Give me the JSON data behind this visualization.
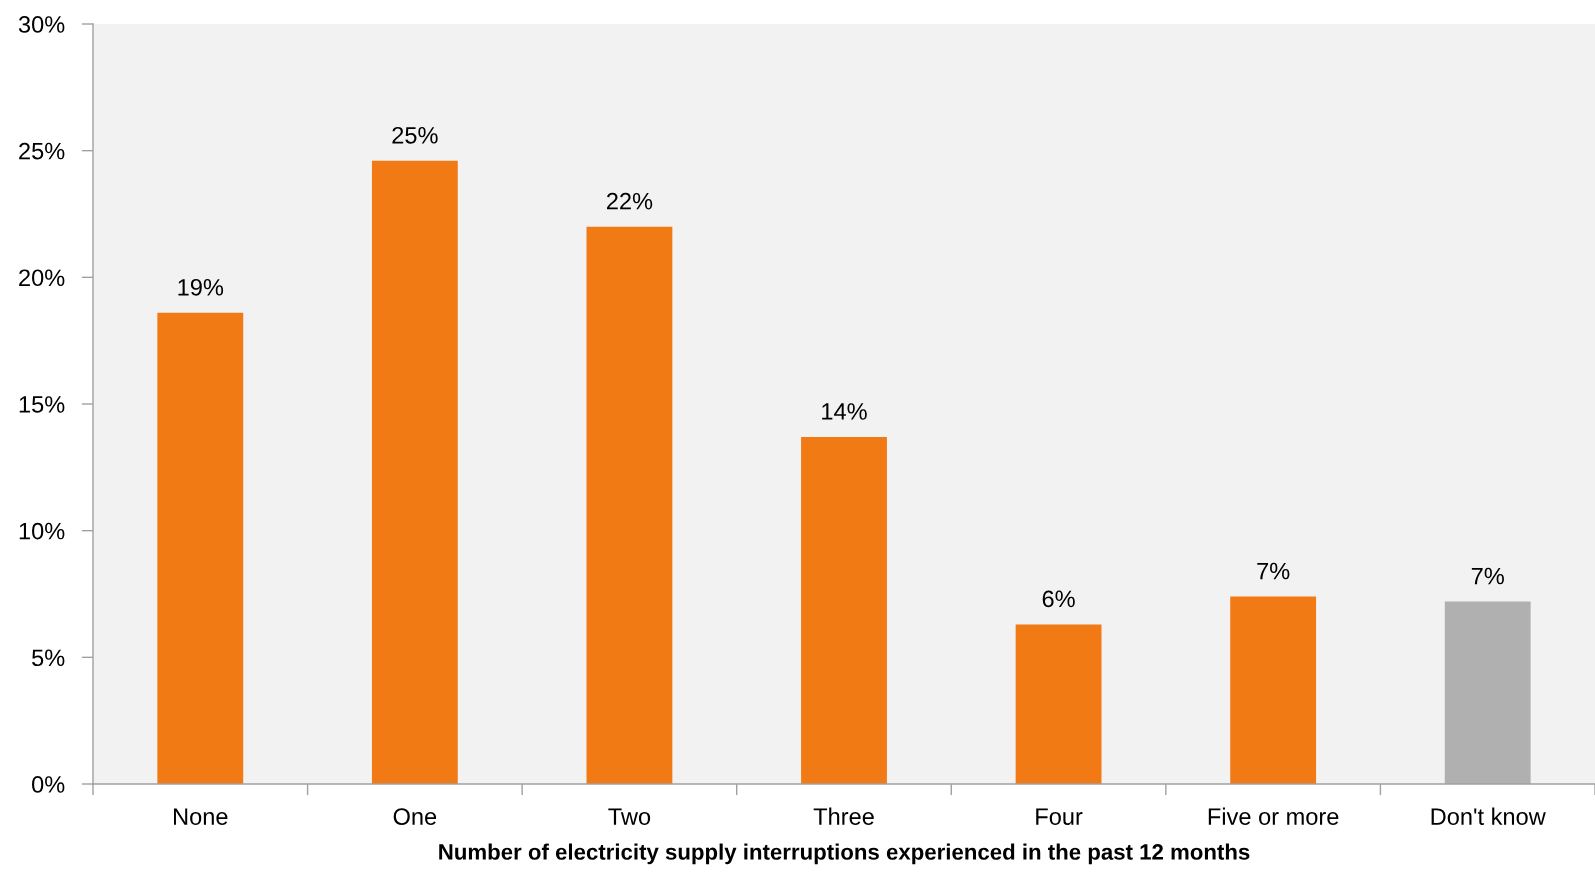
{
  "chart_data": {
    "type": "bar",
    "xlabel": "Number of electricity supply interruptions experienced in the past 12 months",
    "categories": [
      "None",
      "One",
      "Two",
      "Three",
      "Four",
      "Five or more",
      "Don't know"
    ],
    "values": [
      18.6,
      24.6,
      22.0,
      13.7,
      6.3,
      7.4,
      7.2
    ],
    "colors": [
      "#f27a14",
      "#f27a14",
      "#f27a14",
      "#f27a14",
      "#f27a14",
      "#f27a14",
      "#b0b0b0"
    ],
    "value_labels": [
      "19%",
      "25%",
      "22%",
      "14%",
      "6%",
      "7%",
      "7%"
    ],
    "ylim": [
      0,
      30
    ],
    "yticks": [
      {
        "value": 0,
        "label": "0%"
      },
      {
        "value": 5,
        "label": "5%"
      },
      {
        "value": 10,
        "label": "10%"
      },
      {
        "value": 15,
        "label": "15%"
      },
      {
        "value": 20,
        "label": "20%"
      },
      {
        "value": 25,
        "label": "25%"
      },
      {
        "value": 30,
        "label": "30%"
      }
    ]
  }
}
